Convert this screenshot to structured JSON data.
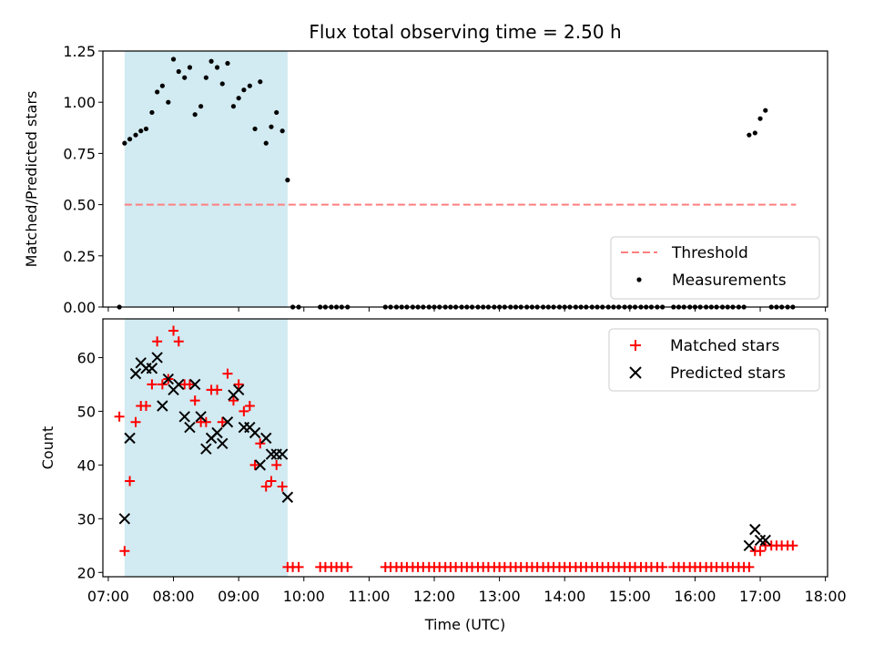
{
  "title": "Flux total observing time = 2.50 h",
  "chart_data": [
    {
      "type": "scatter",
      "ylabel": "Matched/Predicted stars",
      "xlim_hours": [
        6.917,
        18.033
      ],
      "ylim": [
        0,
        1.25
      ],
      "yticks": [
        "0.00",
        "0.25",
        "0.50",
        "0.75",
        "1.00",
        "1.25"
      ],
      "shaded_span_hours": [
        7.25,
        9.75
      ],
      "shade_color": "#add8e6",
      "threshold": {
        "name": "Threshold",
        "value": 0.5,
        "x_range_hours": [
          7.25,
          17.55
        ],
        "color": "#ff7f7f"
      },
      "legend": {
        "placement": "lower right",
        "entries": [
          "Threshold",
          "Measurements"
        ]
      },
      "series": [
        {
          "name": "Measurements",
          "color": "#000000",
          "x_hours": [
            7.17,
            7.25,
            7.33,
            7.42,
            7.5,
            7.58,
            7.67,
            7.75,
            7.83,
            7.92,
            8.0,
            8.08,
            8.17,
            8.25,
            8.33,
            8.42,
            8.5,
            8.58,
            8.67,
            8.75,
            8.83,
            8.92,
            9.0,
            9.08,
            9.17,
            9.25,
            9.33,
            9.42,
            9.5,
            9.58,
            9.67,
            9.75,
            9.83,
            9.92,
            10.25,
            10.33,
            10.42,
            10.5,
            10.58,
            10.67,
            11.25,
            11.33,
            11.42,
            11.5,
            11.58,
            11.67,
            11.75,
            11.83,
            11.92,
            12.0,
            12.08,
            12.17,
            12.25,
            12.33,
            12.42,
            12.5,
            12.58,
            12.67,
            12.75,
            12.83,
            12.92,
            13.0,
            13.08,
            13.17,
            13.25,
            13.33,
            13.42,
            13.5,
            13.58,
            13.67,
            13.75,
            13.83,
            13.92,
            14.0,
            14.08,
            14.17,
            14.25,
            14.33,
            14.42,
            14.5,
            14.58,
            14.67,
            14.75,
            14.83,
            14.92,
            15.0,
            15.08,
            15.17,
            15.25,
            15.33,
            15.42,
            15.5,
            15.67,
            15.75,
            15.83,
            15.92,
            16.0,
            16.08,
            16.17,
            16.25,
            16.33,
            16.42,
            16.5,
            16.58,
            16.67,
            16.75,
            16.83,
            16.92,
            17.0,
            17.08,
            17.17,
            17.25,
            17.33,
            17.42,
            17.5
          ],
          "y": [
            0,
            0.8,
            0.82,
            0.84,
            0.86,
            0.87,
            0.95,
            1.05,
            1.08,
            1.0,
            1.21,
            1.15,
            1.12,
            1.17,
            0.94,
            0.98,
            1.12,
            1.2,
            1.17,
            1.09,
            1.19,
            0.98,
            1.02,
            1.06,
            1.08,
            0.87,
            1.1,
            0.8,
            0.88,
            0.95,
            0.86,
            0.62,
            0,
            0,
            0,
            0,
            0,
            0,
            0,
            0,
            0,
            0,
            0,
            0,
            0,
            0,
            0,
            0,
            0,
            0,
            0,
            0,
            0,
            0,
            0,
            0,
            0,
            0,
            0,
            0,
            0,
            0,
            0,
            0,
            0,
            0,
            0,
            0,
            0,
            0,
            0,
            0,
            0,
            0,
            0,
            0,
            0,
            0,
            0,
            0,
            0,
            0,
            0,
            0,
            0,
            0,
            0,
            0,
            0,
            0,
            0,
            0,
            0,
            0,
            0,
            0,
            0,
            0,
            0,
            0,
            0,
            0,
            0,
            0,
            0,
            0,
            0.84,
            0.85,
            0.92,
            0.96,
            0,
            0,
            0,
            0,
            0
          ]
        }
      ]
    },
    {
      "type": "scatter",
      "xlabel": "Time (UTC)",
      "ylabel": "Count",
      "xlim_hours": [
        6.917,
        18.033
      ],
      "ylim": [
        19.2,
        67.2
      ],
      "yticks": [
        "20",
        "30",
        "40",
        "50",
        "60"
      ],
      "xticks": [
        "07:00",
        "08:00",
        "09:00",
        "10:00",
        "11:00",
        "12:00",
        "13:00",
        "14:00",
        "15:00",
        "16:00",
        "17:00",
        "18:00"
      ],
      "shaded_span_hours": [
        7.25,
        9.75
      ],
      "shade_color": "#add8e6",
      "legend": {
        "placement": "upper right",
        "entries": [
          "Matched stars",
          "Predicted stars"
        ]
      },
      "series": [
        {
          "name": "Matched stars",
          "marker": "+",
          "color": "#ff0000",
          "x_hours": [
            7.17,
            7.25,
            7.33,
            7.42,
            7.5,
            7.58,
            7.67,
            7.75,
            7.83,
            7.92,
            8.0,
            8.08,
            8.17,
            8.25,
            8.33,
            8.42,
            8.5,
            8.58,
            8.67,
            8.75,
            8.83,
            8.92,
            9.0,
            9.08,
            9.17,
            9.25,
            9.33,
            9.42,
            9.5,
            9.58,
            9.67,
            9.75,
            9.83,
            9.92,
            10.25,
            10.33,
            10.42,
            10.5,
            10.58,
            10.67,
            11.25,
            11.33,
            11.42,
            11.5,
            11.58,
            11.67,
            11.75,
            11.83,
            11.92,
            12.0,
            12.08,
            12.17,
            12.25,
            12.33,
            12.42,
            12.5,
            12.58,
            12.67,
            12.75,
            12.83,
            12.92,
            13.0,
            13.08,
            13.17,
            13.25,
            13.33,
            13.42,
            13.5,
            13.58,
            13.67,
            13.75,
            13.83,
            13.92,
            14.0,
            14.08,
            14.17,
            14.25,
            14.33,
            14.42,
            14.5,
            14.58,
            14.67,
            14.75,
            14.83,
            14.92,
            15.0,
            15.08,
            15.17,
            15.25,
            15.33,
            15.42,
            15.5,
            15.67,
            15.75,
            15.83,
            15.92,
            16.0,
            16.08,
            16.17,
            16.25,
            16.33,
            16.42,
            16.5,
            16.58,
            16.67,
            16.75,
            16.83,
            16.92,
            17.0,
            17.08,
            17.17,
            17.25,
            17.33,
            17.42,
            17.5
          ],
          "y": [
            49,
            24,
            37,
            48,
            51,
            51,
            55,
            63,
            55,
            56,
            65,
            63,
            55,
            55,
            52,
            48,
            48,
            54,
            54,
            48,
            57,
            52,
            55,
            50,
            51,
            40,
            44,
            36,
            37,
            40,
            36,
            21,
            21,
            21,
            21,
            21,
            21,
            21,
            21,
            21,
            21,
            21,
            21,
            21,
            21,
            21,
            21,
            21,
            21,
            21,
            21,
            21,
            21,
            21,
            21,
            21,
            21,
            21,
            21,
            21,
            21,
            21,
            21,
            21,
            21,
            21,
            21,
            21,
            21,
            21,
            21,
            21,
            21,
            21,
            21,
            21,
            21,
            21,
            21,
            21,
            21,
            21,
            21,
            21,
            21,
            21,
            21,
            21,
            21,
            21,
            21,
            21,
            21,
            21,
            21,
            21,
            21,
            21,
            21,
            21,
            21,
            21,
            21,
            21,
            21,
            21,
            21,
            24,
            24,
            25,
            25,
            25,
            25,
            25,
            25
          ]
        },
        {
          "name": "Predicted stars",
          "marker": "x",
          "color": "#000000",
          "x_hours": [
            7.25,
            7.33,
            7.42,
            7.5,
            7.58,
            7.67,
            7.75,
            7.83,
            7.92,
            8.0,
            8.08,
            8.17,
            8.25,
            8.33,
            8.42,
            8.5,
            8.58,
            8.67,
            8.75,
            8.83,
            8.92,
            9.0,
            9.08,
            9.17,
            9.25,
            9.33,
            9.42,
            9.5,
            9.58,
            9.67,
            9.75,
            16.83,
            16.92,
            17.0,
            17.08
          ],
          "y": [
            30,
            45,
            57,
            59,
            58,
            58,
            60,
            51,
            56,
            54,
            55,
            49,
            47,
            55,
            49,
            43,
            45,
            46,
            44,
            48,
            53,
            54,
            47,
            47,
            46,
            40,
            45,
            42,
            42,
            42,
            34,
            25,
            28,
            26,
            26
          ]
        }
      ]
    }
  ]
}
